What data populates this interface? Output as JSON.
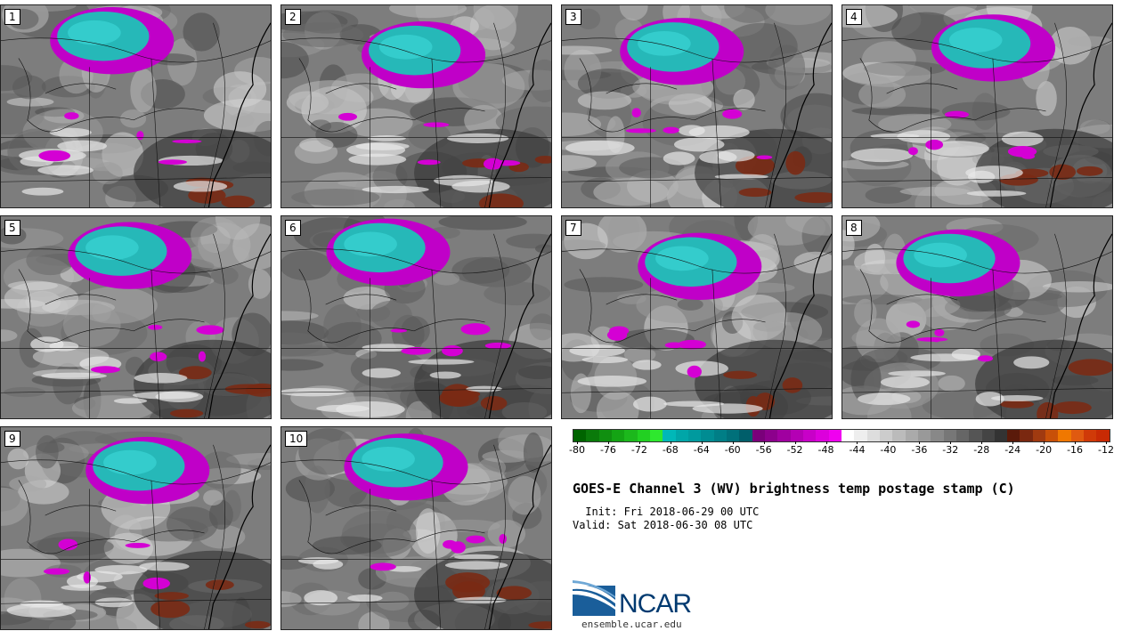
{
  "panels": [
    {
      "label": "1"
    },
    {
      "label": "2"
    },
    {
      "label": "3"
    },
    {
      "label": "4"
    },
    {
      "label": "5"
    },
    {
      "label": "6"
    },
    {
      "label": "7"
    },
    {
      "label": "8"
    },
    {
      "label": "9"
    },
    {
      "label": "10"
    }
  ],
  "colorbar": {
    "colors": [
      "#006400",
      "#0a7a0a",
      "#108f10",
      "#14a414",
      "#1cb81c",
      "#22d022",
      "#2ee82e",
      "#00b8b8",
      "#00a6a8",
      "#009a9e",
      "#008c92",
      "#007e86",
      "#00707a",
      "#005e6a",
      "#7a007a",
      "#8c008c",
      "#a000a0",
      "#b400b4",
      "#c800c8",
      "#dc00dc",
      "#f000f0",
      "#ffffff",
      "#eeeeee",
      "#dddddd",
      "#cccccc",
      "#bbbbbb",
      "#aaaaaa",
      "#999999",
      "#888888",
      "#777777",
      "#666666",
      "#555555",
      "#444444",
      "#333333",
      "#5a1a0a",
      "#7a2810",
      "#a03a10",
      "#c85008",
      "#f07800",
      "#e05a10",
      "#d03a08",
      "#c82a04"
    ],
    "tick_labels": [
      "-80",
      "-76",
      "-72",
      "-68",
      "-64",
      "-60",
      "-56",
      "-52",
      "-48",
      "-44",
      "-40",
      "-36",
      "-32",
      "-28",
      "-24",
      "-20",
      "-16",
      "-12"
    ]
  },
  "title": "GOES-E Channel 3 (WV) brightness temp postage stamp (C)",
  "init": " Init: Fri 2018-06-29 00 UTC",
  "valid": "Valid: Sat 2018-06-30 08 UTC",
  "logo": {
    "name": "NCAR",
    "url": "ensemble.ucar.edu"
  }
}
